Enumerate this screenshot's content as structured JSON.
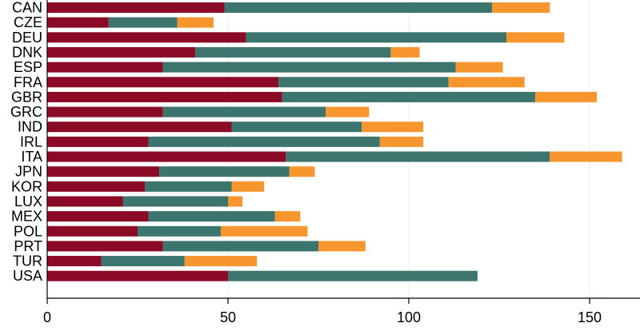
{
  "chart_data": {
    "type": "bar",
    "orientation": "horizontal",
    "stacked": true,
    "title": "",
    "xlabel": "",
    "ylabel": "",
    "xlim": [
      0,
      164
    ],
    "xticks": [
      0,
      50,
      100,
      150
    ],
    "grid": true,
    "legend": "none",
    "categories": [
      "CAN",
      "CZE",
      "DEU",
      "DNK",
      "ESP",
      "FRA",
      "GBR",
      "GRC",
      "IND",
      "IRL",
      "ITA",
      "JPN",
      "KOR",
      "LUX",
      "MEX",
      "POL",
      "PRT",
      "TUR",
      "USA"
    ],
    "series": [
      {
        "color": "#8b0a26",
        "values": [
          49,
          17,
          55,
          41,
          32,
          64,
          65,
          32,
          51,
          28,
          66,
          31,
          27,
          21,
          28,
          25,
          32,
          15,
          50
        ]
      },
      {
        "color": "#3b756e",
        "values": [
          74,
          19,
          72,
          54,
          81,
          47,
          70,
          45,
          36,
          64,
          73,
          36,
          24,
          29,
          35,
          23,
          43,
          23,
          69
        ]
      },
      {
        "color": "#f7962e",
        "values": [
          16,
          10,
          16,
          8,
          13,
          21,
          17,
          12,
          17,
          12,
          20,
          7,
          9,
          4,
          7,
          24,
          13,
          20,
          0
        ]
      }
    ]
  }
}
